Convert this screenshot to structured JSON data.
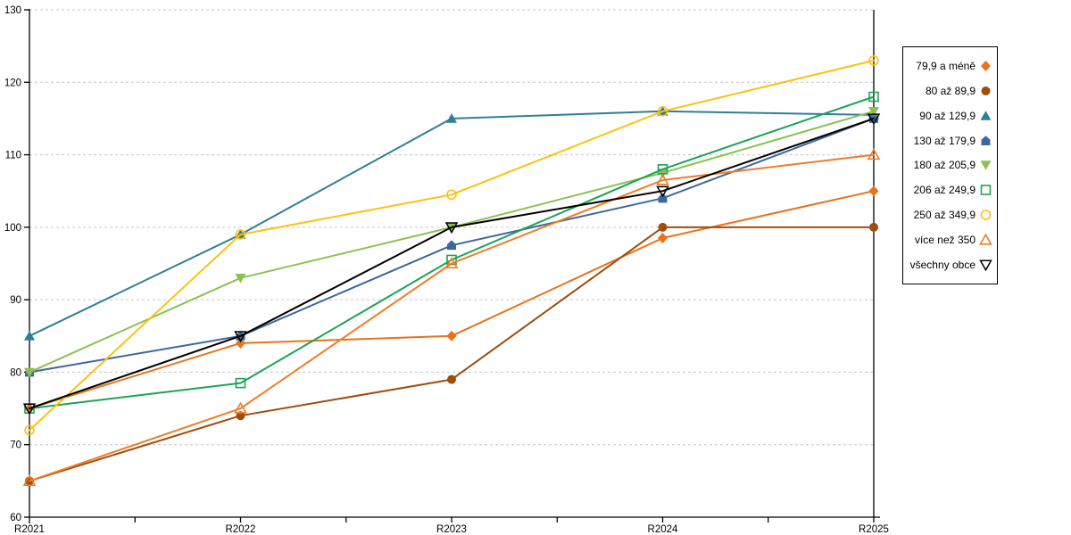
{
  "chart_data": {
    "type": "line",
    "title": "",
    "xlabel": "",
    "ylabel": "",
    "categories": [
      "R2021",
      "R2022",
      "R2023",
      "R2024",
      "R2025"
    ],
    "series": [
      {
        "name": "79,9 a méně",
        "marker": "diamond-filled",
        "color": "#E8731A",
        "values": [
          75,
          84,
          85,
          98.5,
          105
        ]
      },
      {
        "name": "80 až 89,9",
        "marker": "circle-filled",
        "color": "#9E4D0E",
        "values": [
          65,
          74,
          79,
          100,
          100
        ]
      },
      {
        "name": "90 až 129,9",
        "marker": "triangle-up-filled",
        "color": "#2E7F96",
        "values": [
          85,
          99,
          115,
          116,
          115.5
        ]
      },
      {
        "name": "130 až 179,9",
        "marker": "pentagon-filled",
        "color": "#3E689C",
        "values": [
          80,
          85,
          97.5,
          104,
          115
        ]
      },
      {
        "name": "180 až 205,9",
        "marker": "triangle-down-filled",
        "color": "#8CC152",
        "values": [
          80,
          93,
          100,
          107.5,
          116
        ]
      },
      {
        "name": "206 až 249,9",
        "marker": "square-open",
        "color": "#1FA257",
        "values": [
          75,
          78.5,
          95.5,
          108,
          118
        ]
      },
      {
        "name": "250 až 349,9",
        "marker": "circle-open",
        "color": "#FCC211",
        "values": [
          72,
          99,
          104.5,
          116,
          123
        ]
      },
      {
        "name": "více než 350",
        "marker": "triangle-up-open",
        "color": "#EF7D28",
        "values": [
          65,
          75,
          95,
          106.5,
          110
        ]
      },
      {
        "name": "všechny obce",
        "marker": "triangle-down-open",
        "color": "#000000",
        "values": [
          75,
          85,
          100,
          105,
          115
        ]
      }
    ],
    "ylim": [
      60,
      130
    ],
    "ytick_step": 10,
    "grid": "horizontal-dashed",
    "legend_position": "right"
  },
  "axis": {
    "y_ticks": [
      "60",
      "70",
      "80",
      "90",
      "100",
      "110",
      "120",
      "130"
    ]
  },
  "colors": {
    "background": "#FFFFFF",
    "axis": "#000000",
    "gridline": "#C6C6C6",
    "legend_border": "#000000",
    "text": "#000000"
  }
}
